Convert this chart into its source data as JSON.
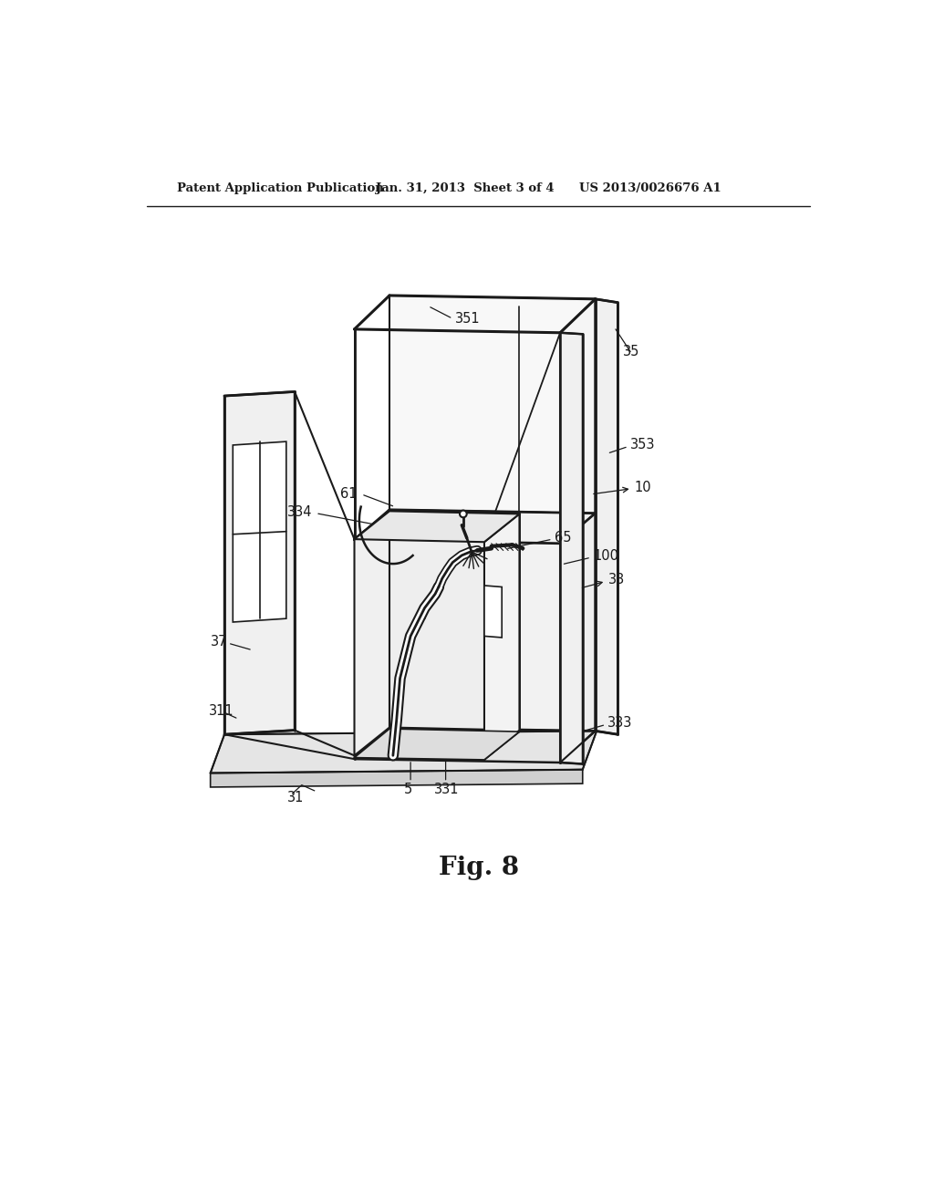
{
  "background_color": "#ffffff",
  "line_color": "#1a1a1a",
  "header_left": "Patent Application Publication",
  "header_mid": "Jan. 31, 2013  Sheet 3 of 4",
  "header_right": "US 2013/0026676 A1",
  "fig_label": "Fig. 8"
}
